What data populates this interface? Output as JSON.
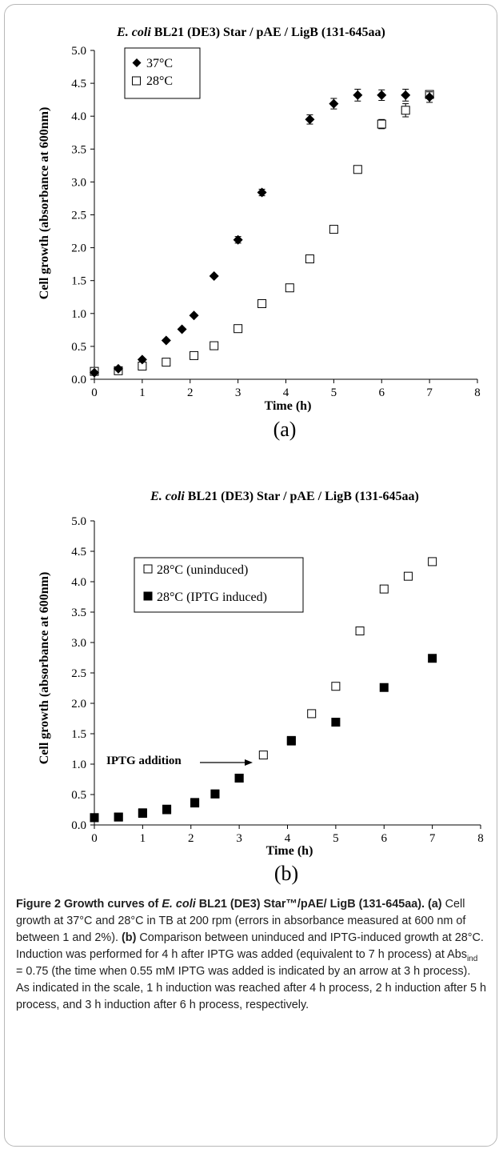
{
  "chart_data": [
    {
      "type": "scatter",
      "title": {
        "italic": "E. coli",
        "rest": " BL21 (DE3) Star / pAE / LigB (131-645aa)"
      },
      "xlabel": "Time (h)",
      "ylabel": "Cell growth (absorbance at 600nm)",
      "xlim": [
        0,
        8
      ],
      "ylim": [
        0,
        5
      ],
      "xticks": [
        "0",
        "1",
        "2",
        "3",
        "4",
        "5",
        "6",
        "7",
        "8"
      ],
      "yticks": [
        "0.0",
        "0.5",
        "1.0",
        "1.5",
        "2.0",
        "2.5",
        "3.0",
        "3.5",
        "4.0",
        "4.5",
        "5.0"
      ],
      "panel_label": "(a)",
      "grid": false,
      "legend_position": "top-left",
      "series": [
        {
          "name": "37°C",
          "marker": "diamond-filled",
          "x": [
            0,
            0.5,
            1,
            1.5,
            1.83,
            2.08,
            2.5,
            3,
            3.5,
            4.5,
            5,
            5.5,
            6,
            6.5,
            7
          ],
          "y": [
            0.1,
            0.16,
            0.3,
            0.59,
            0.76,
            0.97,
            1.57,
            2.12,
            2.84,
            3.95,
            4.19,
            4.32,
            4.32,
            4.32,
            4.29
          ],
          "error": [
            0,
            0,
            0,
            0,
            0,
            0,
            0,
            0.05,
            0.05,
            0.07,
            0.08,
            0.09,
            0.08,
            0.09,
            0.08
          ]
        },
        {
          "name": "28°C",
          "marker": "square-open",
          "x": [
            0,
            0.5,
            1,
            1.5,
            2.08,
            2.5,
            3,
            3.5,
            4.08,
            4.5,
            5,
            5.5,
            6,
            6.5,
            7
          ],
          "y": [
            0.12,
            0.13,
            0.2,
            0.26,
            0.36,
            0.51,
            0.77,
            1.15,
            1.39,
            1.83,
            2.28,
            3.19,
            3.88,
            4.09,
            4.33
          ],
          "error": [
            0,
            0,
            0,
            0,
            0,
            0,
            0,
            0,
            0,
            0,
            0,
            0.04,
            0.07,
            0.1,
            0.05
          ]
        }
      ]
    },
    {
      "type": "scatter",
      "title": {
        "italic": "E. coli",
        "rest": " BL21 (DE3) Star / pAE / LigB (131-645aa)"
      },
      "xlabel": "Time (h)",
      "ylabel": "Cell growth (absorbance at 600nm)",
      "xlim": [
        0,
        8
      ],
      "ylim": [
        0,
        5
      ],
      "xticks": [
        "0",
        "1",
        "2",
        "3",
        "4",
        "5",
        "6",
        "7",
        "8"
      ],
      "yticks": [
        "0.0",
        "0.5",
        "1.0",
        "1.5",
        "2.0",
        "2.5",
        "3.0",
        "3.5",
        "4.0",
        "4.5",
        "5.0"
      ],
      "panel_label": "(b)",
      "grid": false,
      "legend_position": "top-left",
      "annotation": {
        "text": "IPTG addition",
        "x": 3,
        "y": 0.77
      },
      "series": [
        {
          "name": "28°C (uninduced)",
          "marker": "square-open",
          "x": [
            0,
            0.5,
            1,
            1.5,
            2.08,
            2.5,
            3,
            3.5,
            4.08,
            4.5,
            5,
            5.5,
            6,
            6.5,
            7
          ],
          "y": [
            0.12,
            0.13,
            0.2,
            0.26,
            0.36,
            0.51,
            0.77,
            1.15,
            1.39,
            1.83,
            2.28,
            3.19,
            3.88,
            4.09,
            4.33
          ]
        },
        {
          "name": "28°C (IPTG induced)",
          "marker": "square-filled",
          "x": [
            0,
            0.5,
            1,
            1.5,
            2.08,
            2.5,
            3,
            4.08,
            5,
            6,
            7
          ],
          "y": [
            0.12,
            0.13,
            0.19,
            0.25,
            0.37,
            0.51,
            0.77,
            1.38,
            1.69,
            2.26,
            2.74
          ]
        }
      ]
    }
  ],
  "caption": {
    "label": "Figure 2",
    "title_before": " Growth curves of ",
    "title_italic": "E. coli",
    "title_after": " BL21 (DE3) Star™/pAE/ LigB (131-645aa).",
    "a_label": " (a)",
    "a_text": " Cell growth at 37°C and 28°C in TB at 200 rpm (errors in absorbance measured at 600 nm of between 1 and 2%).",
    "b_label": " (b)",
    "b_text_1": " Comparison between uninduced and IPTG-induced growth at 28°C. Induction was performed for 4 h after IPTG was added (equivalent to 7 h process) at Abs",
    "b_sub": "ind",
    "b_text_2": " = 0.75 (the time when 0.55 mM IPTG was added is indicated by an arrow at 3 h process). As indicated in the scale, 1 h induction was reached after 4 h process, 2 h induction after 5 h process, and 3 h induction after 6 h process, respectively."
  }
}
